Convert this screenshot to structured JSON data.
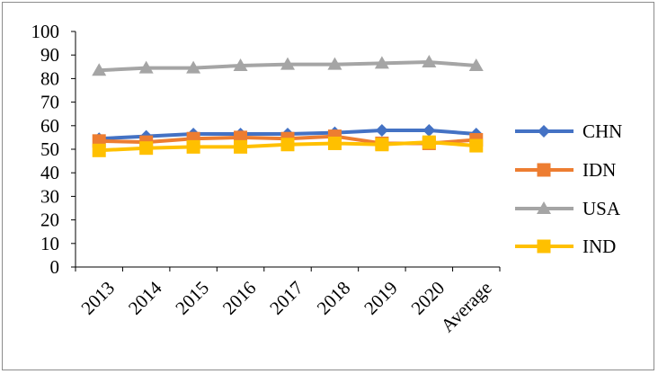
{
  "chart_data": {
    "type": "line",
    "title": "",
    "xlabel": "",
    "ylabel": "",
    "categories": [
      "2013",
      "2014",
      "2015",
      "2016",
      "2017",
      "2018",
      "2019",
      "2020",
      "Average"
    ],
    "ylim": [
      0,
      100
    ],
    "yticks": [
      "0",
      "10",
      "20",
      "30",
      "40",
      "50",
      "60",
      "70",
      "80",
      "90",
      "100"
    ],
    "grid": false,
    "legend_position": "right",
    "series": [
      {
        "name": "CHN",
        "color": "#4472C4",
        "marker": "diamond",
        "values": [
          54.5,
          55.5,
          56.5,
          56.5,
          56.5,
          57,
          58,
          58,
          56.5
        ]
      },
      {
        "name": "IDN",
        "color": "#ED7D31",
        "marker": "square",
        "values": [
          53.5,
          53,
          54.5,
          55,
          54.5,
          55.5,
          52.5,
          52.5,
          54
        ]
      },
      {
        "name": "USA",
        "color": "#A5A5A5",
        "marker": "triangle",
        "values": [
          83.5,
          84.5,
          84.5,
          85.5,
          86,
          86,
          86.5,
          87,
          85.5
        ]
      },
      {
        "name": "IND",
        "color": "#FFC000",
        "marker": "square",
        "values": [
          49.5,
          50.5,
          51,
          51,
          52,
          52.5,
          52,
          53,
          51.5
        ]
      }
    ]
  }
}
